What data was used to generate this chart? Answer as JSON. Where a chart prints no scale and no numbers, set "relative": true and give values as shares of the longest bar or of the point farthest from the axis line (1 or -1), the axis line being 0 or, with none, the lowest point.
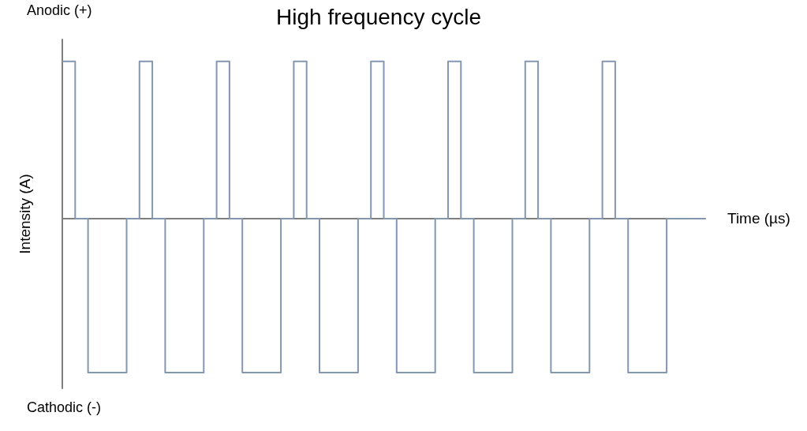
{
  "chart_data": {
    "type": "step",
    "title": "High frequency cycle",
    "xlabel": "Time (µs)",
    "ylabel": "Intensity (A)",
    "annotations": [
      "Anodic (+)",
      "Cathodic (-)"
    ],
    "relative": true,
    "marker": "none",
    "categories": [
      null,
      null,
      null,
      null,
      null,
      null,
      null,
      null,
      null,
      null,
      null,
      null,
      null,
      null,
      null,
      null,
      null,
      null,
      null,
      null,
      null,
      null,
      null,
      null,
      null,
      null,
      null,
      null,
      null,
      null,
      null,
      null,
      null,
      null,
      null,
      null,
      null,
      null,
      null,
      null,
      null,
      null,
      null,
      null,
      null,
      null,
      null,
      null,
      null,
      null,
      null
    ],
    "series": [
      {
        "color": "#8497b0",
        "values": [
          1,
          0,
          -0.98,
          -0.98,
          -0.98,
          0,
          1,
          0,
          -0.98,
          -0.98,
          -0.98,
          0,
          1,
          0,
          -0.98,
          -0.98,
          -0.98,
          0,
          1,
          0,
          -0.98,
          -0.98,
          -0.98,
          0,
          1,
          0,
          -0.98,
          -0.98,
          -0.98,
          0,
          1,
          0,
          -0.98,
          -0.98,
          -0.98,
          0,
          1,
          0,
          -0.98,
          -0.98,
          -0.98,
          0,
          1,
          0,
          -0.98,
          -0.98,
          -0.98,
          0,
          0,
          0,
          0
        ]
      }
    ]
  }
}
